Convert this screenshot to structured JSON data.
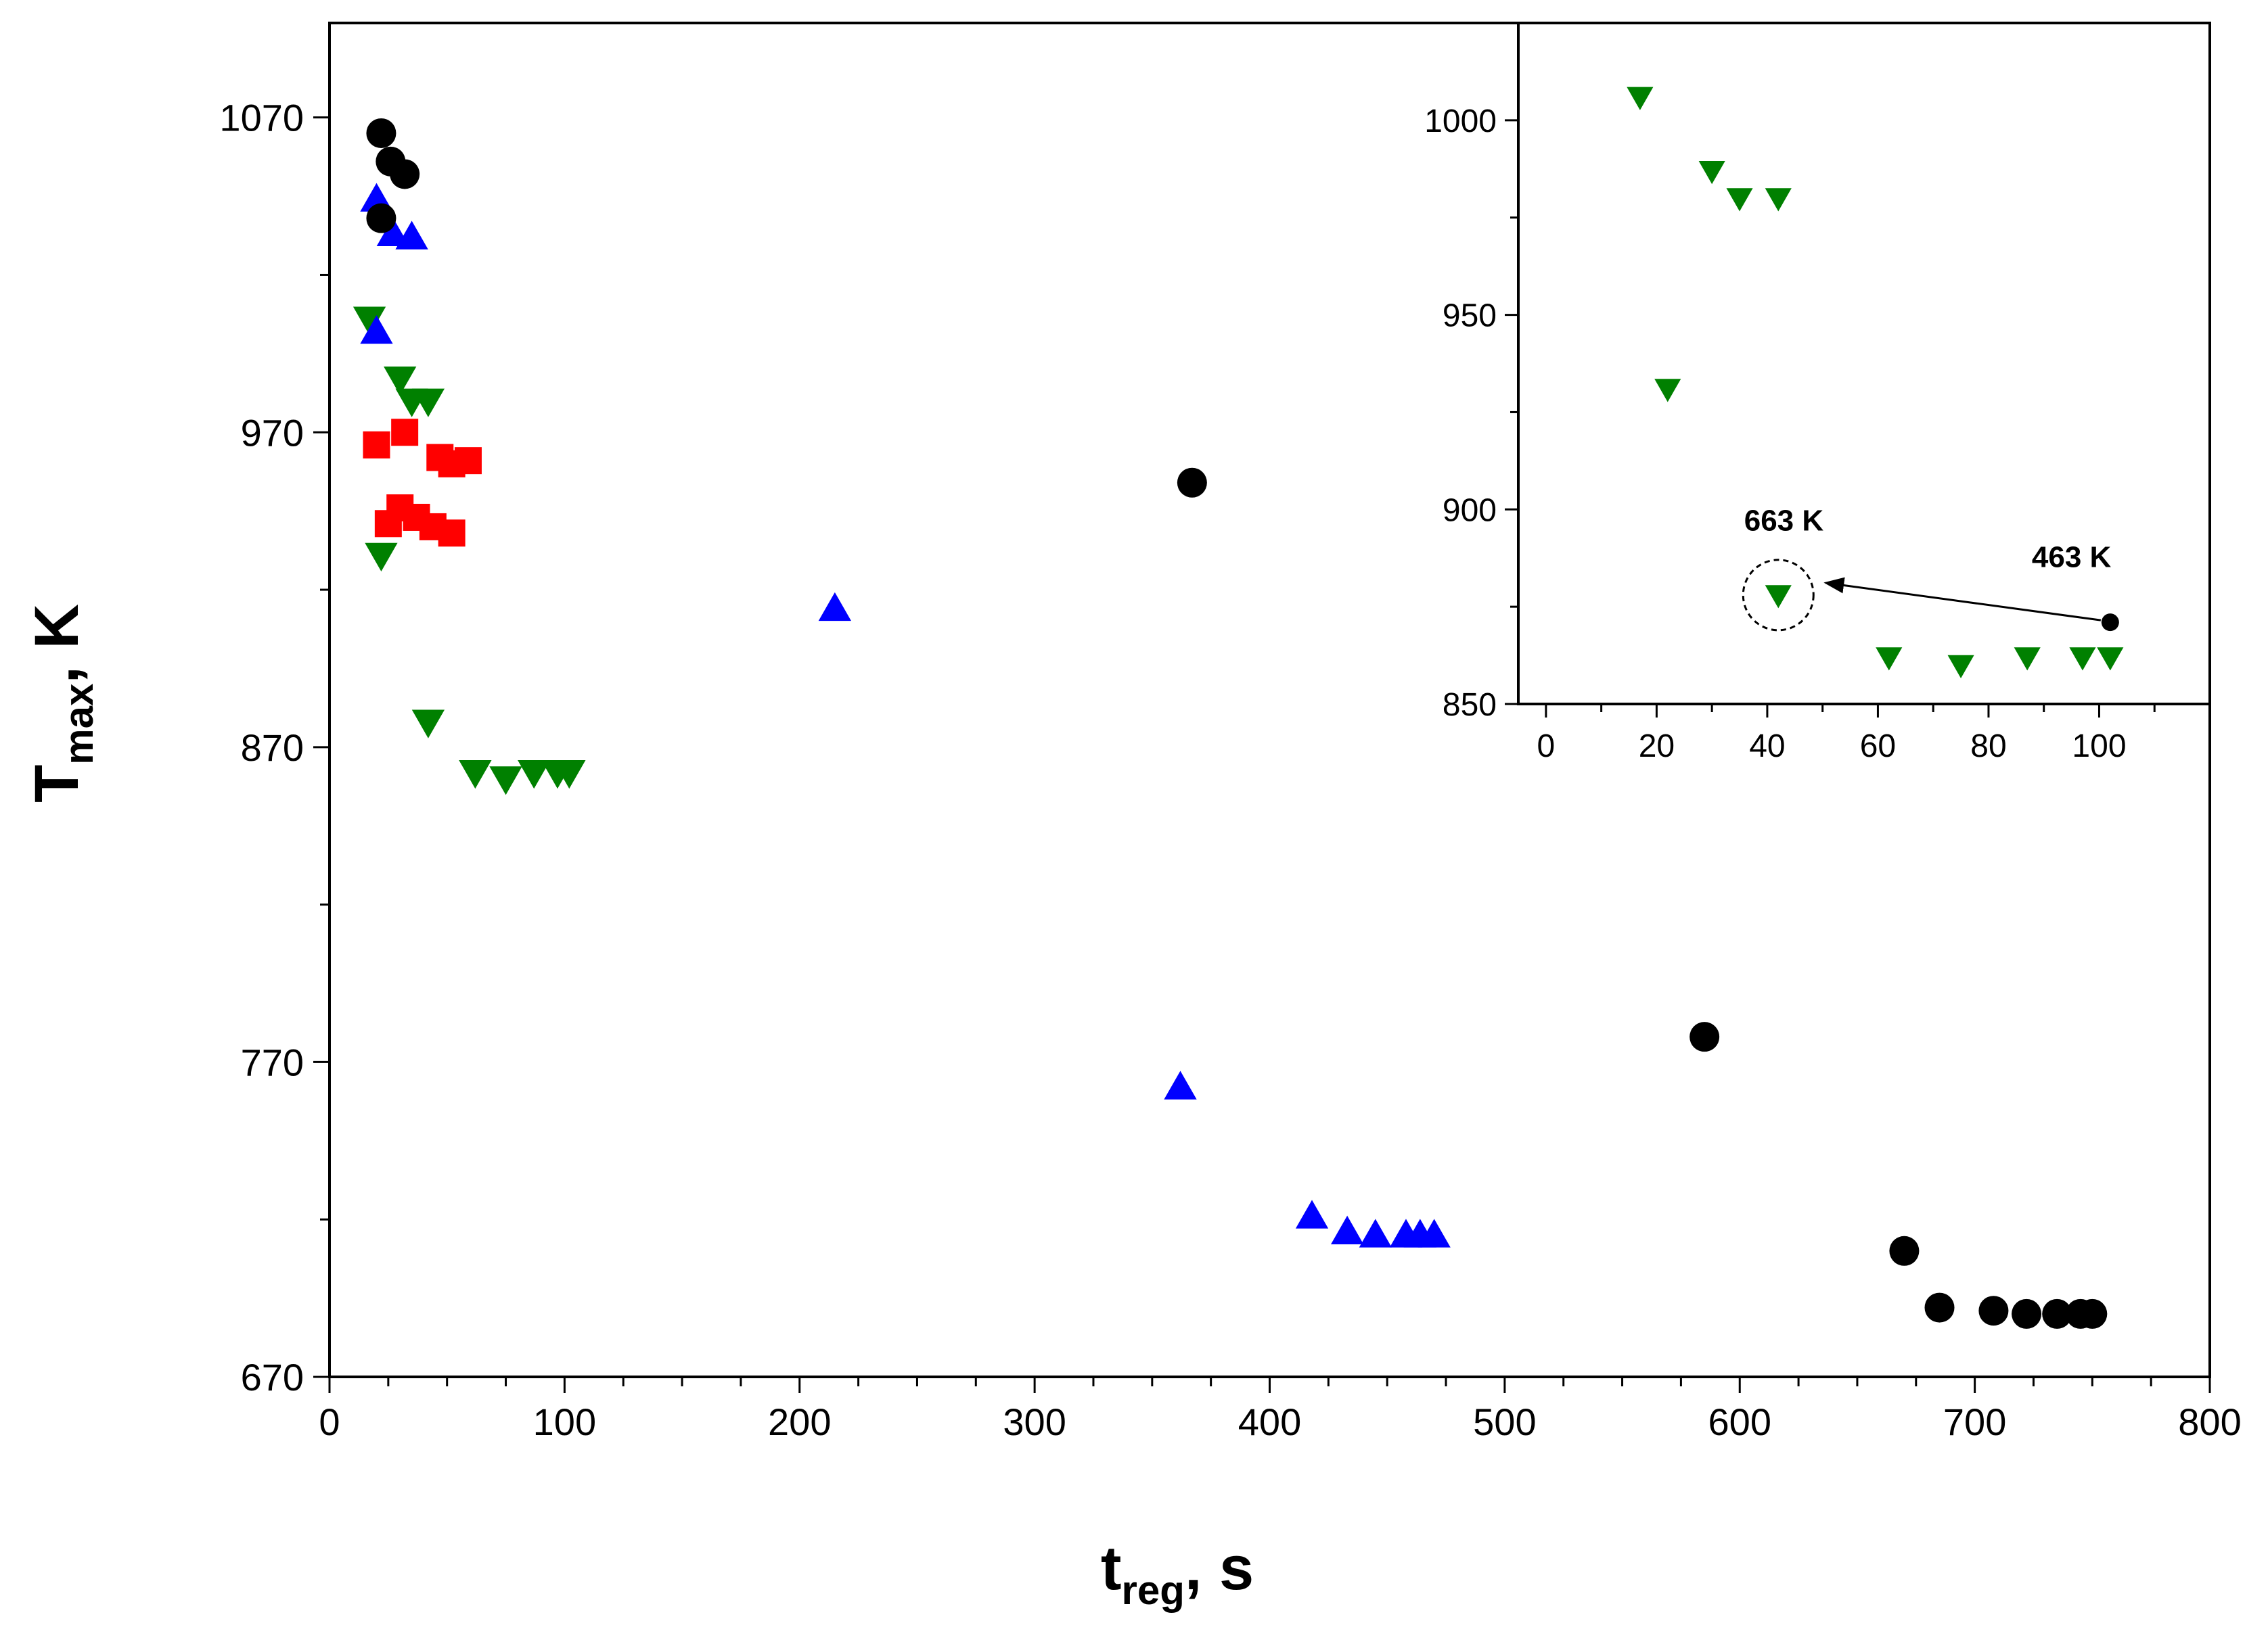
{
  "chart_data": [
    {
      "type": "scatter",
      "title": "",
      "xlabel": "t",
      "xlabel_sub": "reg",
      "xlabel_suffix": ", s",
      "ylabel": "T",
      "ylabel_sub": "max",
      "ylabel_suffix": ", K",
      "xlim": [
        0,
        800
      ],
      "ylim": [
        670,
        1100
      ],
      "xticks": [
        0,
        100,
        200,
        300,
        400,
        500,
        600,
        700,
        800
      ],
      "yticks": [
        670,
        770,
        870,
        970,
        1070
      ],
      "grid": false,
      "legend": "none",
      "series": [
        {
          "name": "black circles",
          "marker": "circle",
          "color": "#000000",
          "x": [
            22,
            26,
            32,
            22,
            367,
            585,
            670,
            685,
            708,
            722,
            735,
            745,
            750
          ],
          "y": [
            1065,
            1056,
            1052,
            1038,
            954,
            778,
            710,
            692,
            691,
            690,
            690,
            690,
            690
          ]
        },
        {
          "name": "blue triangles up",
          "marker": "triangle-up",
          "color": "#0000ff",
          "x": [
            20,
            20,
            27,
            35,
            215,
            362,
            418,
            433,
            445,
            458,
            464,
            470
          ],
          "y": [
            1044,
            1002,
            1033,
            1032,
            914,
            762,
            721,
            716,
            715,
            715,
            715,
            715
          ]
        },
        {
          "name": "green triangles down",
          "marker": "triangle-down",
          "color": "#008000",
          "x": [
            17,
            22,
            30,
            35,
            42,
            42,
            62,
            75,
            87,
            97,
            102
          ],
          "y": [
            1006,
            931,
            987,
            980,
            980,
            878,
            862,
            860,
            862,
            862,
            862
          ]
        },
        {
          "name": "red squares",
          "marker": "square",
          "color": "#ff0000",
          "x": [
            20,
            32,
            47,
            52,
            59,
            25,
            30,
            37,
            44,
            52
          ],
          "y": [
            966,
            970,
            962,
            960,
            961,
            941,
            946,
            943,
            940,
            938
          ]
        }
      ]
    },
    {
      "type": "scatter",
      "title": "inset",
      "xlim": [
        -5,
        120
      ],
      "ylim": [
        850,
        1025
      ],
      "xticks": [
        0,
        20,
        40,
        60,
        80,
        100
      ],
      "yticks": [
        850,
        900,
        950,
        1000
      ],
      "grid": false,
      "legend": "none",
      "series": [
        {
          "name": "green triangles down",
          "marker": "triangle-down",
          "color": "#008000",
          "x": [
            17,
            22,
            30,
            35,
            42,
            42,
            62,
            75,
            87,
            97,
            102
          ],
          "y": [
            1006,
            931,
            987,
            980,
            980,
            878,
            862,
            860,
            862,
            862,
            862
          ]
        },
        {
          "name": "black point",
          "marker": "circle",
          "color": "#000000",
          "x": [
            102
          ],
          "y": [
            871
          ]
        }
      ],
      "annotations": [
        {
          "text": "663 K",
          "x": 43,
          "y": 885
        },
        {
          "text": "463 K",
          "x": 95,
          "y": 880
        }
      ]
    }
  ]
}
